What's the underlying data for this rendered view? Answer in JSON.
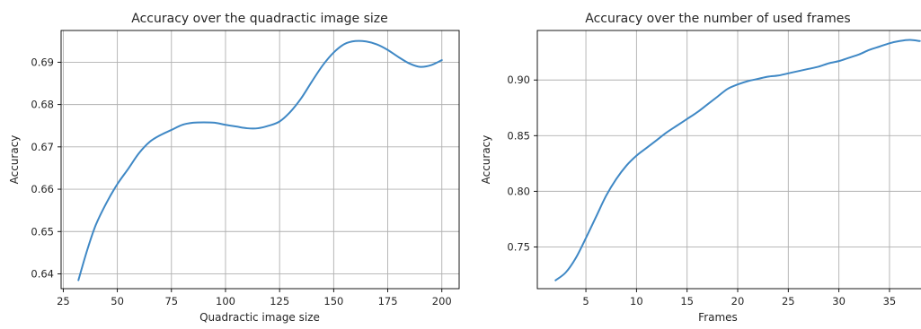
{
  "chart_data": [
    {
      "type": "line",
      "title": "Accuracy over the quadractic image size",
      "xlabel": "Quadractic image size",
      "ylabel": "Accuracy",
      "xlim": [
        24,
        208
      ],
      "ylim": [
        0.6365,
        0.6975
      ],
      "xticks": [
        25,
        50,
        75,
        100,
        125,
        150,
        175,
        200
      ],
      "yticks": [
        0.64,
        0.65,
        0.66,
        0.67,
        0.68,
        0.69
      ],
      "ytick_format": 2,
      "grid": true,
      "series": [
        {
          "color": "#3f88c5",
          "x": [
            32,
            36,
            40,
            45,
            50,
            55,
            60,
            65,
            70,
            75,
            80,
            85,
            90,
            95,
            100,
            105,
            110,
            115,
            120,
            125,
            130,
            135,
            140,
            145,
            150,
            155,
            160,
            165,
            170,
            175,
            180,
            185,
            190,
            195,
            200
          ],
          "y": [
            0.6385,
            0.6455,
            0.6515,
            0.6568,
            0.6612,
            0.6648,
            0.6685,
            0.6712,
            0.6728,
            0.674,
            0.6752,
            0.6757,
            0.6758,
            0.6757,
            0.6752,
            0.6748,
            0.6744,
            0.6744,
            0.675,
            0.676,
            0.6783,
            0.6815,
            0.6855,
            0.6893,
            0.6923,
            0.6943,
            0.695,
            0.6949,
            0.6942,
            0.6929,
            0.6912,
            0.6897,
            0.6889,
            0.6893,
            0.6905
          ]
        }
      ]
    },
    {
      "type": "line",
      "title": "Accuracy over the number of used frames",
      "xlabel": "Frames",
      "ylabel": "Accuracy",
      "xlim": [
        0.2,
        39.8
      ],
      "ylim": [
        0.7125,
        0.9445
      ],
      "xticks": [
        5,
        10,
        15,
        20,
        25,
        30,
        35
      ],
      "yticks": [
        0.75,
        0.8,
        0.85,
        0.9
      ],
      "ytick_format": 2,
      "grid": true,
      "series": [
        {
          "color": "#3f88c5",
          "x": [
            2,
            3,
            4,
            5,
            6,
            7,
            8,
            9,
            10,
            11,
            12,
            13,
            14,
            15,
            16,
            17,
            18,
            19,
            20,
            21,
            22,
            23,
            24,
            25,
            26,
            27,
            28,
            29,
            30,
            31,
            32,
            33,
            34,
            35,
            36,
            37,
            38
          ],
          "y": [
            0.72,
            0.727,
            0.74,
            0.758,
            0.777,
            0.796,
            0.811,
            0.823,
            0.832,
            0.839,
            0.846,
            0.853,
            0.859,
            0.865,
            0.871,
            0.878,
            0.885,
            0.892,
            0.896,
            0.899,
            0.901,
            0.903,
            0.904,
            0.906,
            0.908,
            0.91,
            0.912,
            0.915,
            0.917,
            0.92,
            0.923,
            0.927,
            0.93,
            0.933,
            0.935,
            0.936,
            0.935
          ]
        }
      ]
    }
  ]
}
